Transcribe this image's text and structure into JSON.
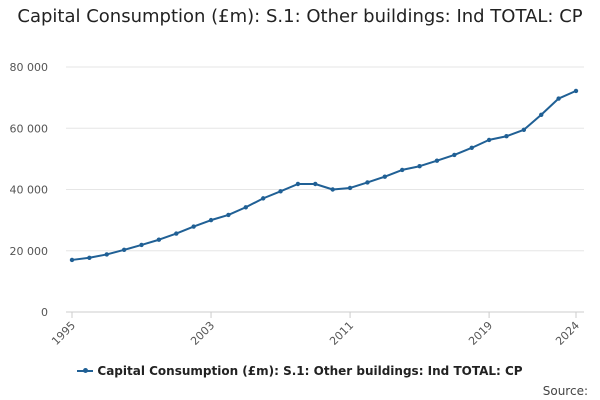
{
  "chart_data": {
    "type": "line",
    "title": "Capital Consumption (£m): S.1: Other buildings: Ind TOTAL: CP",
    "xlabel": "",
    "ylabel": "",
    "x": [
      1995,
      1996,
      1997,
      1998,
      1999,
      2000,
      2001,
      2002,
      2003,
      2004,
      2005,
      2006,
      2007,
      2008,
      2009,
      2010,
      2011,
      2012,
      2013,
      2014,
      2015,
      2016,
      2017,
      2018,
      2019,
      2020,
      2021,
      2022,
      2023,
      2024
    ],
    "series": [
      {
        "name": "Capital Consumption (£m): S.1: Other buildings: Ind TOTAL: CP",
        "color": "#206095",
        "values": [
          17000,
          17700,
          18800,
          20300,
          21900,
          23600,
          25600,
          27900,
          30000,
          31700,
          34200,
          37100,
          39400,
          41800,
          41800,
          40000,
          40500,
          42300,
          44200,
          46400,
          47600,
          49400,
          51300,
          53600,
          56200,
          57400,
          59500,
          64400,
          69700,
          72200
        ]
      }
    ],
    "ylim": [
      0,
      80000
    ],
    "yticks": [
      0,
      20000,
      40000,
      60000,
      80000
    ],
    "ytick_labels": [
      "0",
      "20 000",
      "40 000",
      "60 000",
      "80 000"
    ],
    "xticks": [
      1995,
      2003,
      2011,
      2019,
      2024
    ],
    "xtick_labels": [
      "1995",
      "2003",
      "2011",
      "2019",
      "2024"
    ],
    "grid": true,
    "legend_position": "bottom",
    "source_label": "Source:"
  }
}
